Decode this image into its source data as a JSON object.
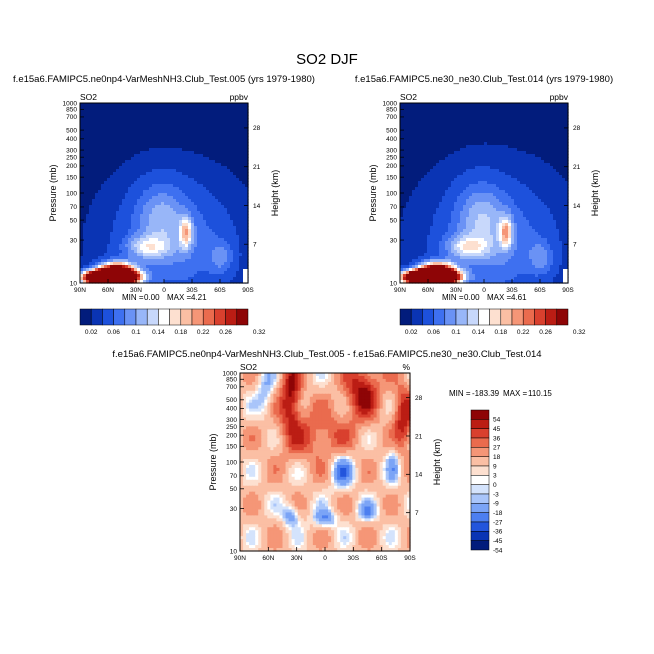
{
  "page_title": "SO2 DJF",
  "colors": {
    "top_scale": [
      "#021c7c",
      "#0a34b4",
      "#1d51dc",
      "#3e70f0",
      "#6a92f5",
      "#98b6f8",
      "#c8d8fb",
      "#ffffff",
      "#fde0d0",
      "#fbbfa4",
      "#f59677",
      "#ea6b4e",
      "#d9402e",
      "#bb1d14",
      "#8e0506"
    ],
    "diff_scale": [
      "#021c7c",
      "#0a34b4",
      "#2355dc",
      "#4d7ff0",
      "#7ba4f6",
      "#a9c5fa",
      "#d4e3fc",
      "#ffffff",
      "#fde0d0",
      "#fbbfa4",
      "#f59677",
      "#ea6b4e",
      "#d9402e",
      "#bb1d14",
      "#8e0506"
    ]
  },
  "chart_data": [
    {
      "type": "heatmap",
      "title": "f.e15a6.FAMIPC5.ne0np4-VarMeshNH3.Club_Test.005 (yrs 1979-1980)",
      "left_label": "SO2",
      "right_label": "ppbv",
      "ylabel": "Pressure (mb)",
      "ylabel_right": "Height (km)",
      "x_ticks": [
        "90N",
        "60N",
        "30N",
        "0",
        "30S",
        "60S",
        "90S"
      ],
      "y_ticks": [
        "10",
        "30",
        "50",
        "70",
        "100",
        "150",
        "200",
        "250",
        "300",
        "400",
        "500",
        "700",
        "850",
        "1000"
      ],
      "y_ticks_right": [
        "28",
        "21",
        "14",
        "7"
      ],
      "stats": {
        "min_label": "MIN =",
        "min": "0.00",
        "max_label": "MAX =",
        "max": "4.21"
      },
      "colorbar_levels": [
        "0.02",
        "0.06",
        "0.1",
        "0.14",
        "0.18",
        "0.22",
        "0.26",
        "0.32"
      ]
    },
    {
      "type": "heatmap",
      "title": "f.e15a6.FAMIPC5.ne30_ne30.Club_Test.014 (yrs 1979-1980)",
      "left_label": "SO2",
      "right_label": "ppbv",
      "ylabel": "Pressure (mb)",
      "ylabel_right": "Height (km)",
      "x_ticks": [
        "90N",
        "60N",
        "30N",
        "0",
        "30S",
        "60S",
        "90S"
      ],
      "y_ticks": [
        "10",
        "30",
        "50",
        "70",
        "100",
        "150",
        "200",
        "250",
        "300",
        "400",
        "500",
        "700",
        "850",
        "1000"
      ],
      "y_ticks_right": [
        "28",
        "21",
        "14",
        "7"
      ],
      "stats": {
        "min_label": "MIN =",
        "min": "0.00",
        "max_label": "MAX =",
        "max": "4.61"
      },
      "colorbar_levels": [
        "0.02",
        "0.06",
        "0.1",
        "0.14",
        "0.18",
        "0.22",
        "0.26",
        "0.32"
      ]
    },
    {
      "type": "heatmap",
      "title": "f.e15a6.FAMIPC5.ne0np4-VarMeshNH3.Club_Test.005 - f.e15a6.FAMIPC5.ne30_ne30.Club_Test.014",
      "left_label": "SO2",
      "right_label": "%",
      "ylabel": "Pressure (mb)",
      "ylabel_right": "Height (km)",
      "x_ticks": [
        "90N",
        "60N",
        "30N",
        "0",
        "30S",
        "60S",
        "90S"
      ],
      "y_ticks": [
        "10",
        "30",
        "50",
        "70",
        "100",
        "150",
        "200",
        "250",
        "300",
        "400",
        "500",
        "700",
        "850",
        "1000"
      ],
      "y_ticks_right": [
        "28",
        "21",
        "14",
        "7"
      ],
      "stats": {
        "min_label": "MIN =",
        "min": "-183.39",
        "max_label": "MAX =",
        "max": "110.15"
      },
      "colorbar_levels": [
        "54",
        "45",
        "36",
        "27",
        "18",
        "9",
        "3",
        "0",
        "-3",
        "-9",
        "-18",
        "-27",
        "-36",
        "-45",
        "-54"
      ]
    }
  ]
}
